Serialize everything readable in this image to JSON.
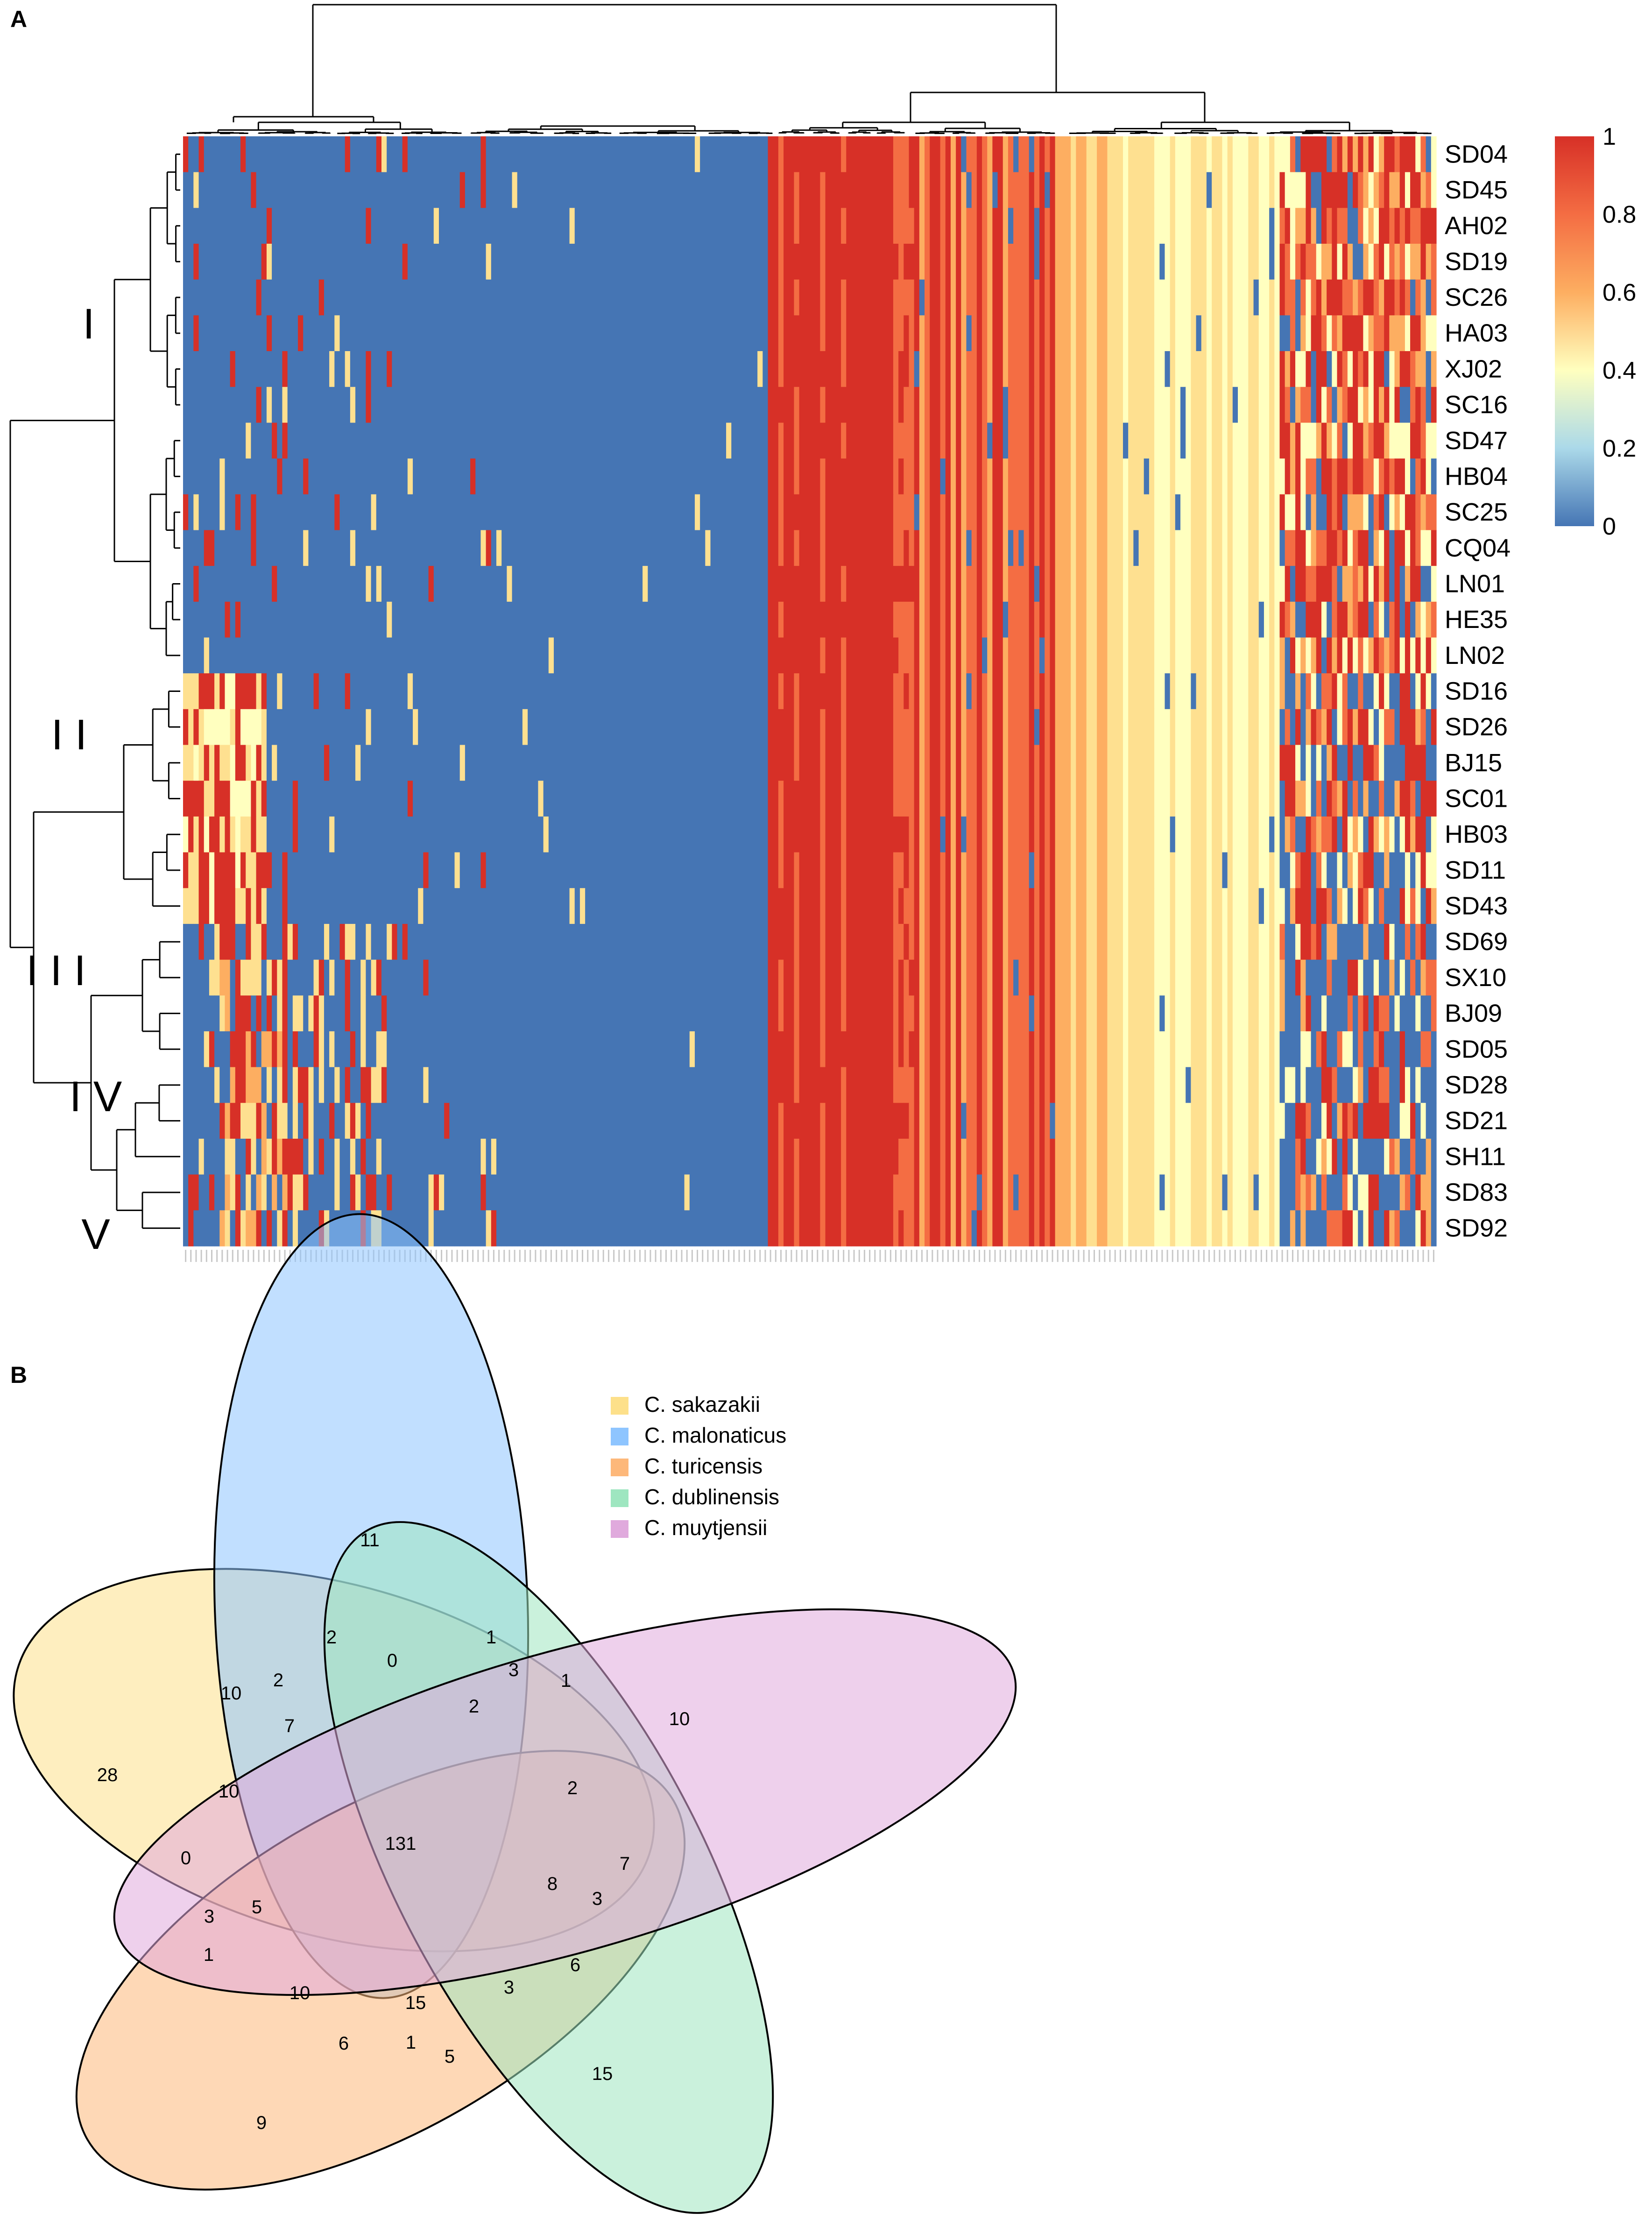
{
  "panels": {
    "a": {
      "label": "A"
    },
    "b": {
      "label": "B"
    }
  },
  "colors": {
    "high": "#d73027",
    "mid_high": "#f46d43",
    "mid": "#fdae61",
    "mid_low": "#fee090",
    "pale": "#ffffbf",
    "low_mid": "#abd9e9",
    "low": "#4575b4"
  },
  "chart_data": [
    {
      "type": "heatmap",
      "title": "",
      "rows": [
        "SD04",
        "SD45",
        "AH02",
        "SD19",
        "SC26",
        "HA03",
        "XJ02",
        "SC16",
        "SD47",
        "HB04",
        "SC25",
        "CQ04",
        "LN01",
        "HE35",
        "LN02",
        "SD16",
        "SD26",
        "BJ15",
        "SC01",
        "HB03",
        "SD11",
        "SD43",
        "SD69",
        "SX10",
        "BJ09",
        "SD05",
        "SD28",
        "SD21",
        "SH11",
        "SD83",
        "SD92"
      ],
      "clusters": [
        {
          "label": "I",
          "rows": [
            "SD04",
            "SD45",
            "AH02",
            "SD19",
            "SC26",
            "HA03",
            "XJ02",
            "SC16",
            "SD47",
            "HB04",
            "SC25",
            "CQ04",
            "LN01",
            "HE35",
            "LN02"
          ]
        },
        {
          "label": "I I",
          "rows": [
            "SD16",
            "SD26",
            "BJ15",
            "SC01",
            "HB03",
            "SD11",
            "SD43"
          ]
        },
        {
          "label": "I I I",
          "rows": [
            "SD69",
            "SX10",
            "BJ09",
            "SD05"
          ]
        },
        {
          "label": "I V",
          "rows": [
            "SD28",
            "SD21",
            "SH11"
          ]
        },
        {
          "label": "V",
          "rows": [
            "SD83",
            "SD92"
          ]
        }
      ],
      "colorbar": {
        "range": [
          0,
          1
        ],
        "ticks": [
          "1",
          "0.8",
          "0.6",
          "0.4",
          "0.2",
          "0"
        ]
      }
    },
    {
      "type": "venn",
      "title": "",
      "sets": [
        "C. sakazakii",
        "C. malonaticus",
        "C. turicensis",
        "C. dublinensis",
        "C. muytjensii"
      ],
      "set_colors": [
        "#fde08a",
        "#8ec5ff",
        "#fdb87a",
        "#9ee6c0",
        "#e0aadd"
      ],
      "unique_counts": {
        "C. sakazakii": "28",
        "C. malonaticus": "11",
        "C. turicensis": "9",
        "C. dublinensis": "15",
        "C. muytjensii": "10"
      },
      "all_sets_count": "131",
      "other_intersection_counts": [
        "10",
        "2",
        "0",
        "1",
        "2",
        "7",
        "3",
        "2",
        "1",
        "10",
        "2",
        "0",
        "8",
        "7",
        "3",
        "5",
        "3",
        "6",
        "1",
        "10",
        "15",
        "3",
        "6",
        "1",
        "5"
      ]
    }
  ]
}
